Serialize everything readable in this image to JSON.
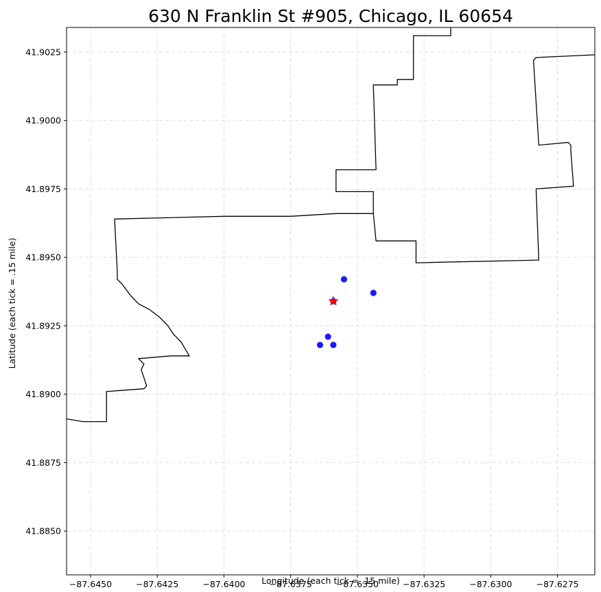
{
  "chart_data": {
    "type": "scatter",
    "title": "630 N Franklin St #905, Chicago, IL 60654",
    "xlabel": "Longitude (each tick = .15 mile)",
    "ylabel": "Latitude (each tick = .15 mile)",
    "xlim": [
      -87.6459,
      -87.6261
    ],
    "ylim": [
      41.8834,
      41.9034
    ],
    "xticks": [
      -87.645,
      -87.6425,
      -87.64,
      -87.6375,
      -87.635,
      -87.6325,
      -87.63,
      -87.6275
    ],
    "xtick_labels": [
      "−87.6450",
      "−87.6425",
      "−87.6400",
      "−87.6375",
      "−87.6350",
      "−87.6325",
      "−87.6300",
      "−87.6275"
    ],
    "yticks": [
      41.885,
      41.8875,
      41.89,
      41.8925,
      41.895,
      41.8975,
      41.9,
      41.9025
    ],
    "ytick_labels": [
      "41.8850",
      "41.8875",
      "41.8900",
      "41.8925",
      "41.8950",
      "41.8975",
      "41.9000",
      "41.9025"
    ],
    "grid": true,
    "target": {
      "lon": -87.6359,
      "lat": 41.8934,
      "marker": "star",
      "color": "#ff0000"
    },
    "points_color": "#0000ff",
    "points": [
      {
        "lon": -87.6355,
        "lat": 41.8942
      },
      {
        "lon": -87.6344,
        "lat": 41.8937
      },
      {
        "lon": -87.6359,
        "lat": 41.8934
      },
      {
        "lon": -87.6361,
        "lat": 41.8921
      },
      {
        "lon": -87.6364,
        "lat": 41.8918
      },
      {
        "lon": -87.6359,
        "lat": 41.8918
      }
    ],
    "boundaries": [
      [
        [
          -87.6459,
          41.8891
        ],
        [
          -87.6453,
          41.889
        ],
        [
          -87.6444,
          41.889
        ],
        [
          -87.6444,
          41.8901
        ],
        [
          -87.643,
          41.8902
        ],
        [
          -87.6429,
          41.8903
        ],
        [
          -87.6431,
          41.8909
        ],
        [
          -87.643,
          41.8911
        ],
        [
          -87.6432,
          41.8913
        ],
        [
          -87.642,
          41.8914
        ],
        [
          -87.6413,
          41.8914
        ],
        [
          -87.6416,
          41.8919
        ],
        [
          -87.6419,
          41.8922
        ],
        [
          -87.6421,
          41.8925
        ],
        [
          -87.6424,
          41.8928
        ],
        [
          -87.6428,
          41.8931
        ],
        [
          -87.6432,
          41.8933
        ],
        [
          -87.6435,
          41.8936
        ],
        [
          -87.6438,
          41.894
        ],
        [
          -87.644,
          41.8942
        ],
        [
          -87.644,
          41.8945
        ],
        [
          -87.6441,
          41.8964
        ],
        [
          -87.64,
          41.8965
        ],
        [
          -87.6375,
          41.8965
        ],
        [
          -87.6358,
          41.8966
        ],
        [
          -87.635,
          41.8966
        ],
        [
          -87.6344,
          41.8966
        ]
      ],
      [
        [
          -87.6344,
          41.8966
        ],
        [
          -87.6343,
          41.8956
        ],
        [
          -87.6328,
          41.8956
        ],
        [
          -87.6328,
          41.8948
        ],
        [
          -87.6282,
          41.8949
        ],
        [
          -87.6283,
          41.8975
        ],
        [
          -87.6269,
          41.8976
        ],
        [
          -87.627,
          41.8989
        ],
        [
          -87.627,
          41.8991
        ],
        [
          -87.6271,
          41.8992
        ],
        [
          -87.6282,
          41.8991
        ],
        [
          -87.6284,
          41.9022
        ],
        [
          -87.6283,
          41.9023
        ],
        [
          -87.6261,
          41.9024
        ]
      ],
      [
        [
          -87.6344,
          41.8966
        ],
        [
          -87.6344,
          41.8974
        ],
        [
          -87.6358,
          41.8974
        ],
        [
          -87.6358,
          41.8982
        ],
        [
          -87.6343,
          41.8982
        ],
        [
          -87.6344,
          41.9013
        ],
        [
          -87.6335,
          41.9013
        ],
        [
          -87.6335,
          41.9015
        ],
        [
          -87.6329,
          41.9015
        ],
        [
          -87.6329,
          41.9031
        ],
        [
          -87.6315,
          41.9031
        ],
        [
          -87.6315,
          41.9034
        ]
      ]
    ]
  }
}
